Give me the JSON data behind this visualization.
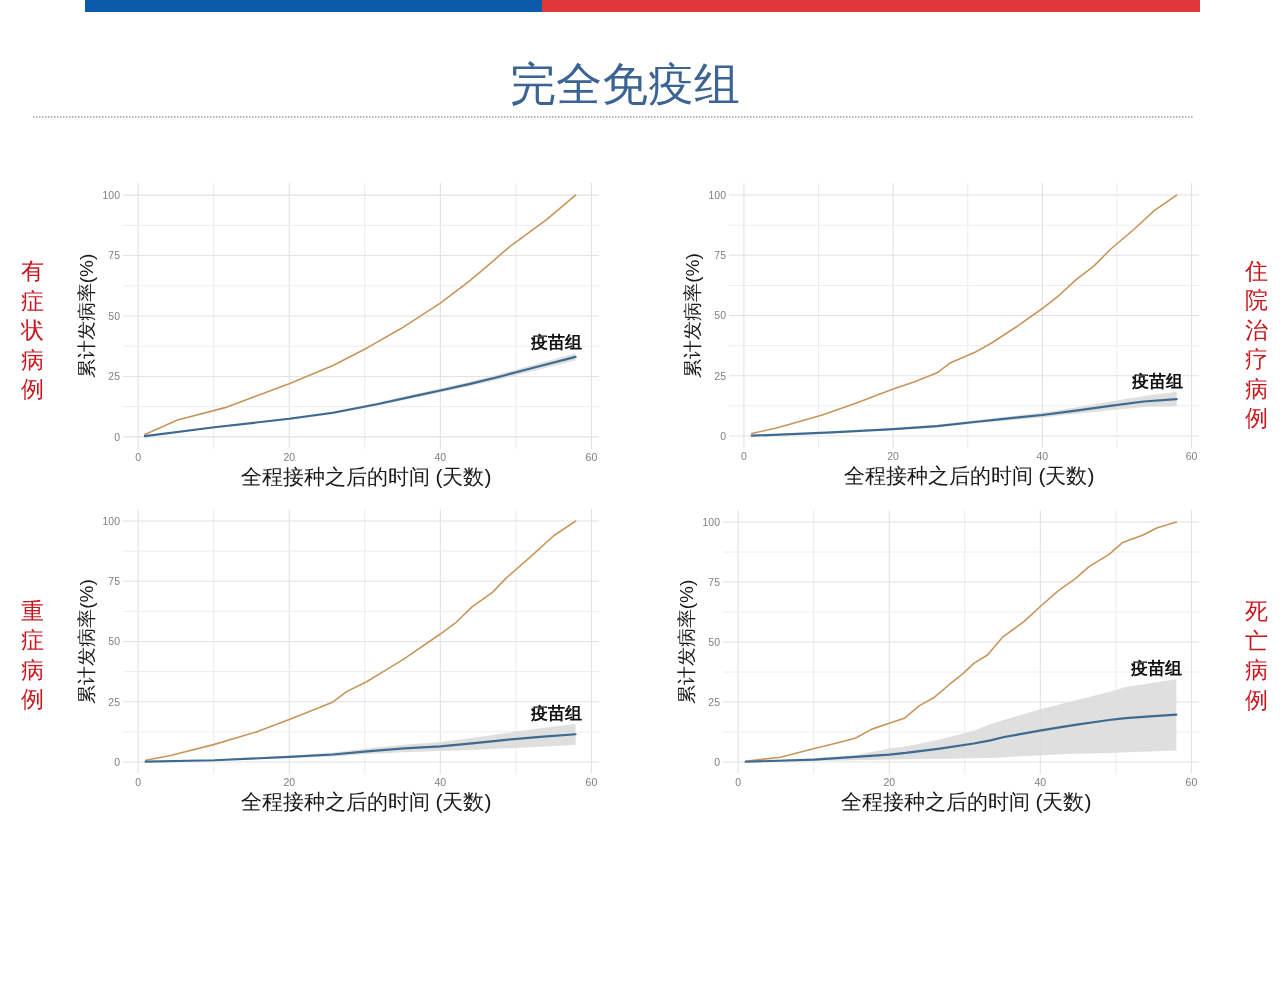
{
  "chart_data": [
    {
      "type": "line",
      "title": "完全免疫组",
      "subtitle": "有症状病例",
      "xlabel": "全程接种之后的时间 (天数)",
      "ylabel": "累计发病率(%)",
      "xlim": [
        -2,
        61
      ],
      "ylim": [
        -5,
        105
      ],
      "xticks": [
        0,
        {
          "value": 10,
          "label": null
        },
        20,
        {
          "value": 30,
          "label": null
        },
        40,
        {
          "value": 50,
          "label": null
        },
        60
      ],
      "yticks": [
        0,
        {
          "value": 12.5,
          "label": null
        },
        25,
        {
          "value": 37.5,
          "label": null
        },
        50,
        {
          "value": 62.5,
          "label": null
        },
        75,
        {
          "value": 87.5,
          "label": null
        },
        100
      ],
      "grid": true,
      "series": [
        {
          "color": "#c8955b",
          "x": [
            0.9,
            5.2,
            11.4,
            20,
            25.8,
            30.3,
            34.8,
            40,
            43.8,
            46.7,
            49.1,
            54.1,
            57.9
          ],
          "values": [
            1,
            7,
            12,
            22,
            29.5,
            36.8,
            44.8,
            55.3,
            64.3,
            72,
            78.5,
            90,
            100
          ]
        },
        {
          "name": "疫苗组",
          "color": "#3e6a92",
          "x": [
            0.9,
            10.1,
            20,
            25.8,
            31.6,
            37,
            40,
            43.8,
            48.2,
            52.7,
            57.9
          ],
          "values": [
            0.3,
            4.0,
            7.5,
            10,
            13.5,
            17.2,
            19.2,
            21.8,
            25.2,
            28.9,
            33.1
          ],
          "lower": [
            0.2,
            3.7,
            7.1,
            9.5,
            12.9,
            16.5,
            18.4,
            20.9,
            24.1,
            27.6,
            31.6
          ],
          "upper": [
            0.4,
            4.3,
            7.9,
            10.5,
            14.1,
            17.9,
            20.0,
            22.7,
            26.3,
            30.2,
            34.6
          ]
        }
      ]
    },
    {
      "type": "line",
      "y2label": "住院治疗病例",
      "xlabel": "全程接种之后的时间 (天数)",
      "ylabel": "累计发病率(%)",
      "xlim": [
        -2,
        61
      ],
      "ylim": [
        -5,
        105
      ],
      "xticks": [
        0,
        {
          "value": 10,
          "label": null
        },
        20,
        {
          "value": 30,
          "label": null
        },
        40,
        {
          "value": 50,
          "label": null
        },
        60
      ],
      "yticks": [
        0,
        {
          "value": 12.5,
          "label": null
        },
        25,
        {
          "value": 37.5,
          "label": null
        },
        50,
        {
          "value": 62.5,
          "label": null
        },
        75,
        {
          "value": 87.5,
          "label": null
        },
        100
      ],
      "grid": true,
      "series": [
        {
          "color": "#c8955b",
          "x": [
            1.05,
            4.5,
            10.5,
            15,
            20,
            22.7,
            25.9,
            27.7,
            30.9,
            33.2,
            36.8,
            40,
            42.3,
            44.5,
            47,
            49.1,
            52.3,
            55,
            58
          ],
          "values": [
            1,
            3.4,
            8.7,
            13.6,
            19.5,
            22.3,
            26.2,
            30.4,
            34.6,
            38.6,
            45.9,
            52.9,
            58.5,
            64.8,
            70.8,
            77.4,
            85.8,
            93.5,
            100
          ]
        },
        {
          "name": "疫苗组",
          "color": "#3e6a92",
          "x": [
            1.05,
            11.8,
            20,
            25.9,
            30.9,
            35.5,
            40,
            44.5,
            49.1,
            53.6,
            58
          ],
          "values": [
            0.1,
            1.5,
            2.8,
            4.1,
            5.8,
            7.3,
            8.7,
            10.5,
            12.5,
            14.3,
            15.3
          ],
          "lower": [
            0.1,
            1.3,
            2.5,
            3.6,
            5.2,
            6.5,
            7.7,
            9.2,
            10.7,
            12.0,
            12.3
          ],
          "upper": [
            0.1,
            1.7,
            3.1,
            4.6,
            6.4,
            8.1,
            9.7,
            11.8,
            14.3,
            16.6,
            18.3
          ]
        }
      ]
    },
    {
      "type": "line",
      "subtitle": "重症病例",
      "xlabel": "全程接种之后的时间 (天数)",
      "ylabel": "累计发病率(%)",
      "xlim": [
        -2,
        61
      ],
      "ylim": [
        -5,
        105
      ],
      "xticks": [
        0,
        {
          "value": 10,
          "label": null
        },
        20,
        {
          "value": 30,
          "label": null
        },
        40,
        {
          "value": 50,
          "label": null
        },
        60
      ],
      "yticks": [
        0,
        {
          "value": 12.5,
          "label": null
        },
        25,
        {
          "value": 37.5,
          "label": null
        },
        50,
        {
          "value": 62.5,
          "label": null
        },
        75,
        {
          "value": 87.5,
          "label": null
        },
        100
      ],
      "grid": true,
      "series": [
        {
          "color": "#c8955b",
          "x": [
            1,
            4.3,
            10.1,
            15.9,
            20,
            23.6,
            25.8,
            27.6,
            30.3,
            32.5,
            35.2,
            40,
            42,
            44.2,
            46.9,
            48.7,
            52.3,
            55,
            57.9
          ],
          "values": [
            0.7,
            2.7,
            7.3,
            12.7,
            17.6,
            22.1,
            24.9,
            29.2,
            33.4,
            37.6,
            42.8,
            53.1,
            57.7,
            64.4,
            70.4,
            76.3,
            86.2,
            93.9,
            100
          ]
        },
        {
          "name": "疫苗组",
          "color": "#3e6a92",
          "x": [
            1,
            10.1,
            20,
            25.8,
            30.3,
            35.2,
            40,
            44.2,
            48.7,
            53.2,
            57.9
          ],
          "values": [
            0.1,
            0.7,
            2.1,
            3.1,
            4.4,
            5.6,
            6.5,
            7.7,
            9.2,
            10.4,
            11.5
          ],
          "lower": [
            0.1,
            0.5,
            1.6,
            2.3,
            3.3,
            4.0,
            4.5,
            5.0,
            5.7,
            6.3,
            7.0
          ],
          "upper": [
            0.1,
            0.9,
            2.6,
            3.9,
            5.6,
            7.1,
            8.3,
            9.9,
            12.0,
            14.0,
            15.8
          ]
        }
      ]
    },
    {
      "type": "line",
      "y2label": "死亡病例",
      "xlabel": "全程接种之后的时间 (天数)",
      "ylabel": "累计发病率(%)",
      "xlim": [
        -2,
        61
      ],
      "ylim": [
        -5,
        105
      ],
      "xticks": [
        0,
        {
          "value": 10,
          "label": null
        },
        20,
        {
          "value": 30,
          "label": null
        },
        40,
        {
          "value": 50,
          "label": null
        },
        60
      ],
      "yticks": [
        0,
        {
          "value": 12.5,
          "label": null
        },
        25,
        {
          "value": 37.5,
          "label": null
        },
        50,
        {
          "value": 62.5,
          "label": null
        },
        75,
        {
          "value": 87.5,
          "label": null
        },
        100
      ],
      "grid": true,
      "series": [
        {
          "color": "#c8955b",
          "x": [
            1,
            5.6,
            10.1,
            13.2,
            15.5,
            17.7,
            20,
            22,
            24,
            26,
            28,
            29.8,
            31.2,
            33,
            35,
            37,
            37.9,
            40.1,
            42.4,
            44.6,
            46.4,
            49.1,
            50.9,
            53.6,
            55.4,
            58
          ],
          "values": [
            0.3,
            2.0,
            5.6,
            8.0,
            9.9,
            13.7,
            16.1,
            18.2,
            23.5,
            27.0,
            32.4,
            36.9,
            41.1,
            44.6,
            52.0,
            56.6,
            58.7,
            65.1,
            71.4,
            76.3,
            81.3,
            86.5,
            91.5,
            94.6,
            97.5,
            100
          ]
        },
        {
          "name": "疫苗组",
          "color": "#3e6a92",
          "x": [
            1,
            10.1,
            15.5,
            20,
            22.2,
            26.7,
            31.2,
            33.4,
            35.2,
            40.1,
            44.6,
            49.1,
            51.3,
            54.5,
            58
          ],
          "values": [
            0.1,
            1.0,
            2.1,
            3.1,
            3.8,
            5.6,
            7.7,
            9.0,
            10.4,
            13.2,
            15.5,
            17.5,
            18.3,
            19.0,
            19.7
          ],
          "lower": [
            0.1,
            0.4,
            0.7,
            1.0,
            1.1,
            1.3,
            1.6,
            1.7,
            2.0,
            2.8,
            3.4,
            3.8,
            4.1,
            4.4,
            4.8
          ],
          "upper": [
            0.1,
            1.6,
            2.8,
            5.6,
            6.5,
            9.4,
            13.0,
            15.8,
            17.5,
            22.1,
            25.6,
            29.2,
            31.3,
            32.8,
            34.5
          ]
        }
      ]
    }
  ]
}
